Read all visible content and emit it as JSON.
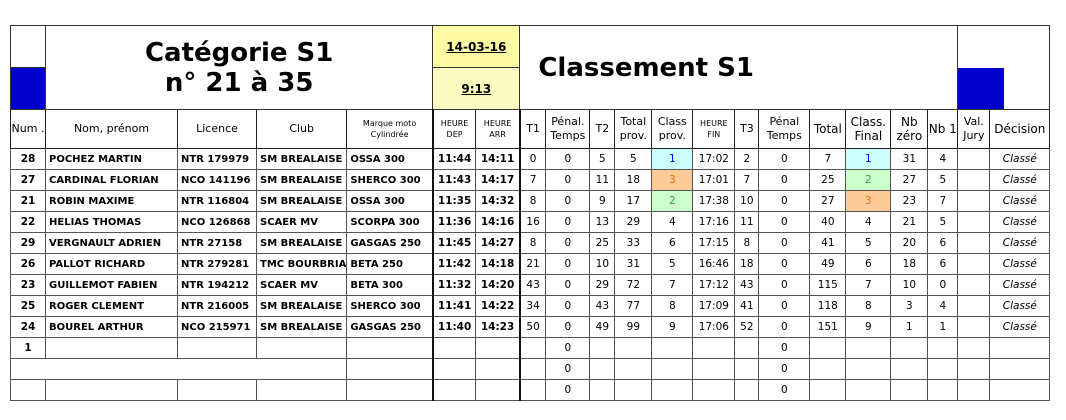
{
  "header": {
    "title_line1": "Catégorie S1",
    "title_line2": "n° 21 à 35",
    "date": "14-03-16",
    "time": "9:13",
    "classement": "Classement S1"
  },
  "colors": {
    "accent_blue": "#0000cc",
    "date_bg": "#fdf9a4",
    "first": "#ccffff",
    "second": "#ccffcc",
    "third": "#ffcc99"
  },
  "columns": [
    "Num .",
    "Nom, prénom",
    "Licence",
    "Club",
    "Marque moto Cylindrée",
    "HEURE DEP",
    "HEURE ARR",
    "T1",
    "Pénal. Temps",
    "T2",
    "Total prov.",
    "Class prov.",
    "HEURE FIN",
    "T3",
    "Pénal Temps",
    "Total",
    "Class. Final",
    "Nb zéro",
    "Nb 1",
    "Val. Jury",
    "Décision"
  ],
  "rows": [
    [
      "28",
      "POCHEZ MARTIN",
      "NTR 179979",
      "SM BREALAISE",
      "OSSA 300",
      "11:44",
      "14:11",
      "0",
      "0",
      "5",
      "5",
      "1",
      "17:02",
      "2",
      "0",
      "7",
      "1",
      "31",
      "4",
      "",
      "Classé"
    ],
    [
      "27",
      "CARDINAL FLORIAN",
      "NCO 141196",
      "SM BREALAISE",
      "SHERCO 300",
      "11:43",
      "14:17",
      "7",
      "0",
      "11",
      "18",
      "3",
      "17:01",
      "7",
      "0",
      "25",
      "2",
      "27",
      "5",
      "",
      "Classé"
    ],
    [
      "21",
      "ROBIN MAXIME",
      "NTR 116804",
      "SM BREALAISE",
      "OSSA 300",
      "11:35",
      "14:32",
      "8",
      "0",
      "9",
      "17",
      "2",
      "17:38",
      "10",
      "0",
      "27",
      "3",
      "23",
      "7",
      "",
      "Classé"
    ],
    [
      "22",
      "HELIAS THOMAS",
      "NCO 126868",
      "SCAER MV",
      "SCORPA 300",
      "11:36",
      "14:16",
      "16",
      "0",
      "13",
      "29",
      "4",
      "17:16",
      "11",
      "0",
      "40",
      "4",
      "21",
      "5",
      "",
      "Classé"
    ],
    [
      "29",
      "VERGNAULT ADRIEN",
      "NTR 27158",
      "SM BREALAISE",
      "GASGAS 250",
      "11:45",
      "14:27",
      "8",
      "0",
      "25",
      "33",
      "6",
      "17:15",
      "8",
      "0",
      "41",
      "5",
      "20",
      "6",
      "",
      "Classé"
    ],
    [
      "26",
      "PALLOT RICHARD",
      "NTR 279281",
      "TMC BOURBRIA",
      "BETA 250",
      "11:42",
      "14:18",
      "21",
      "0",
      "10",
      "31",
      "5",
      "16:46",
      "18",
      "0",
      "49",
      "6",
      "18",
      "6",
      "",
      "Classé"
    ],
    [
      "23",
      "GUILLEMOT FABIEN",
      "NTR 194212",
      "SCAER MV",
      "BETA 300",
      "11:32",
      "14:20",
      "43",
      "0",
      "29",
      "72",
      "7",
      "17:12",
      "43",
      "0",
      "115",
      "7",
      "10",
      "0",
      "",
      "Classé"
    ],
    [
      "25",
      "ROGER CLEMENT",
      "NTR 216005",
      "SM BREALAISE",
      "SHERCO 300",
      "11:41",
      "14:22",
      "34",
      "0",
      "43",
      "77",
      "8",
      "17:09",
      "41",
      "0",
      "118",
      "8",
      "3",
      "4",
      "",
      "Classé"
    ],
    [
      "24",
      "BOUREL ARTHUR",
      "NCO 215971",
      "SM BREALAISE",
      "GASGAS 250",
      "11:40",
      "14:23",
      "50",
      "0",
      "49",
      "99",
      "9",
      "17:06",
      "52",
      "0",
      "151",
      "9",
      "1",
      "1",
      "",
      "Classé"
    ],
    [
      "1",
      "",
      "",
      "",
      "",
      "",
      "",
      "",
      "0",
      "",
      "",
      "",
      "",
      "",
      "0",
      "",
      "",
      "",
      "",
      "",
      ""
    ],
    [
      "",
      "",
      "",
      "",
      "",
      "",
      "",
      "",
      "0",
      "",
      "",
      "",
      "",
      "",
      "0",
      "",
      "",
      "",
      "",
      "",
      ""
    ],
    [
      "",
      "",
      "",
      "",
      "",
      "",
      "",
      "",
      "0",
      "",
      "",
      "",
      "",
      "",
      "0",
      "",
      "",
      "",
      "",
      "",
      ""
    ]
  ]
}
